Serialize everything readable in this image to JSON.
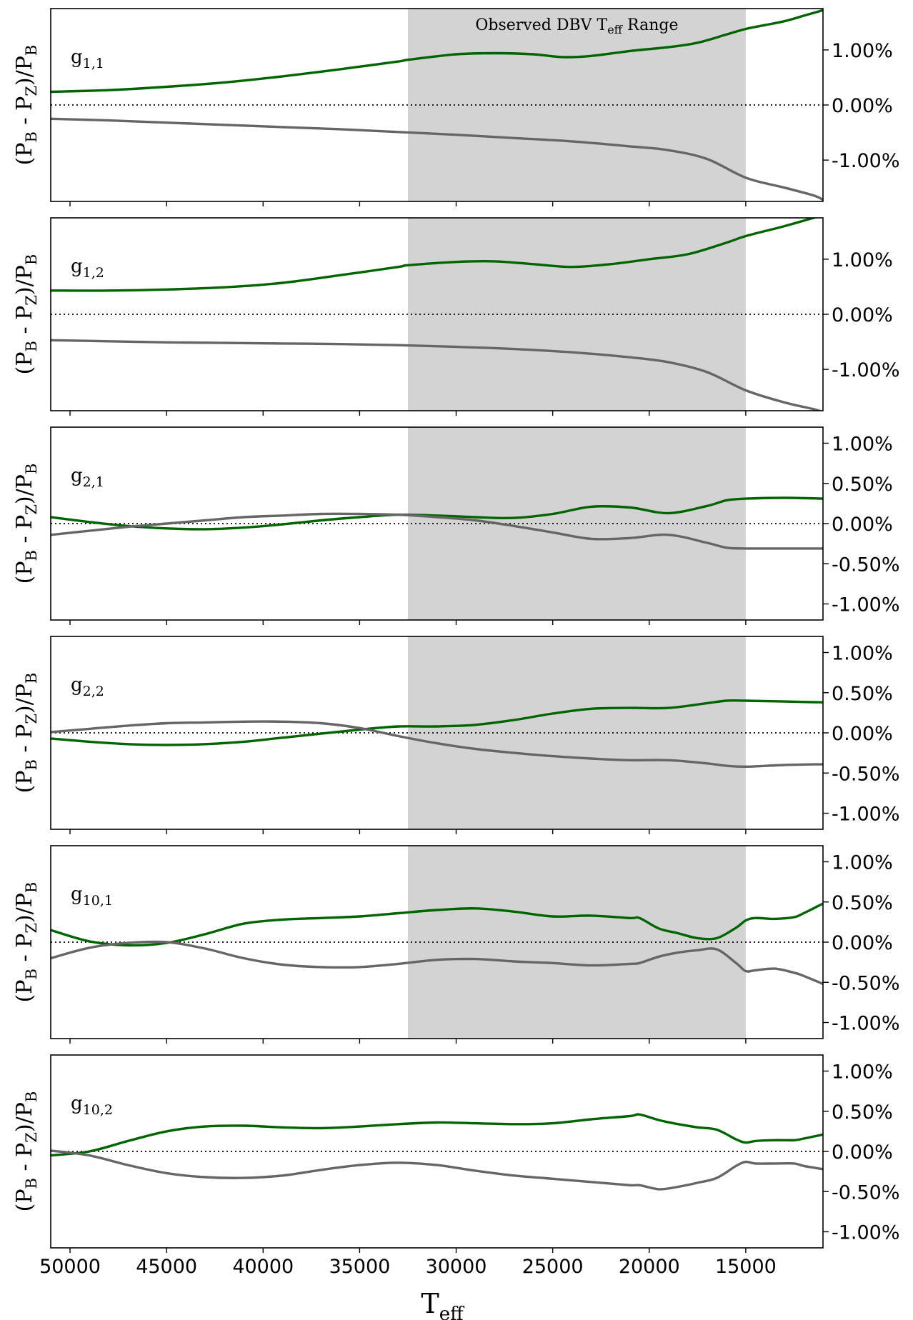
{
  "chart_data": {
    "type": "line",
    "x_axis": {
      "label": "T",
      "label_sub": "eff",
      "lim": [
        51000,
        11000
      ],
      "reversed": true,
      "ticks": [
        50000,
        45000,
        40000,
        35000,
        30000,
        25000,
        20000,
        15000
      ],
      "tick_labels": [
        "50000",
        "45000",
        "40000",
        "35000",
        "30000",
        "25000",
        "20000",
        "15000"
      ]
    },
    "y_axis_label": {
      "pre": "(P",
      "s1": "B",
      "mid": " - P",
      "s2": "Z",
      "post": ")/P",
      "s3": "B"
    },
    "y_axis_side": "right",
    "shaded_region": {
      "x_range": [
        32500,
        15000
      ],
      "label_pre": "Observed DBV T",
      "label_sub": "eff",
      "label_post": " Range",
      "color": "#d3d3d3"
    },
    "zero_line": {
      "y": 0,
      "style": "dotted"
    },
    "colors": {
      "green": "#006400",
      "gray": "#666666"
    },
    "panels": [
      {
        "mode_main": "g",
        "mode_sub": "1,1",
        "shaded": true,
        "show_range_label": true,
        "ylim": [
          -1.75,
          1.75
        ],
        "yticks": [
          1.0,
          0.0,
          -1.0
        ],
        "ytick_labels": [
          "1.00%",
          "0.00%",
          "-1.00%"
        ],
        "series": [
          {
            "color": "#006400",
            "x": [
              51000,
              48000,
              45000,
              42000,
              39000,
              36000,
              33000,
              32500,
              30000,
              28000,
              26000,
              24500,
              23000,
              21000,
              19000,
              17500,
              16000,
              15000,
              14000,
              13000,
              12000,
              11000
            ],
            "y": [
              0.24,
              0.27,
              0.33,
              0.41,
              0.52,
              0.65,
              0.79,
              0.82,
              0.92,
              0.94,
              0.92,
              0.87,
              0.89,
              0.98,
              1.05,
              1.13,
              1.28,
              1.38,
              1.45,
              1.52,
              1.62,
              1.72
            ]
          },
          {
            "color": "#666666",
            "x": [
              51000,
              48000,
              45000,
              42000,
              39000,
              36000,
              33000,
              30000,
              27000,
              24000,
              21000,
              19000,
              17000,
              15000,
              13000,
              11500,
              11000
            ],
            "y": [
              -0.25,
              -0.28,
              -0.32,
              -0.36,
              -0.4,
              -0.44,
              -0.49,
              -0.54,
              -0.6,
              -0.66,
              -0.75,
              -0.82,
              -0.98,
              -1.32,
              -1.5,
              -1.64,
              -1.72
            ]
          }
        ]
      },
      {
        "mode_main": "g",
        "mode_sub": "1,2",
        "shaded": true,
        "show_range_label": false,
        "ylim": [
          -1.75,
          1.75
        ],
        "yticks": [
          1.0,
          0.0,
          -1.0
        ],
        "ytick_labels": [
          "1.00%",
          "0.00%",
          "-1.00%"
        ],
        "series": [
          {
            "color": "#006400",
            "x": [
              51000,
              48000,
              45000,
              42000,
              39000,
              36000,
              33000,
              32500,
              30000,
              28000,
              26000,
              24000,
              22000,
              20000,
              18000,
              16000,
              15000,
              13000,
              11000
            ],
            "y": [
              0.43,
              0.43,
              0.45,
              0.49,
              0.57,
              0.71,
              0.86,
              0.89,
              0.95,
              0.96,
              0.91,
              0.86,
              0.91,
              1.0,
              1.09,
              1.3,
              1.42,
              1.6,
              1.8
            ]
          },
          {
            "color": "#666666",
            "x": [
              51000,
              48000,
              45000,
              42000,
              39000,
              36000,
              33000,
              30000,
              27000,
              24000,
              21000,
              19000,
              17000,
              15000,
              13000,
              11500,
              11000
            ],
            "y": [
              -0.47,
              -0.49,
              -0.51,
              -0.52,
              -0.53,
              -0.54,
              -0.56,
              -0.59,
              -0.63,
              -0.69,
              -0.78,
              -0.87,
              -1.05,
              -1.38,
              -1.6,
              -1.72,
              -1.78
            ]
          }
        ]
      },
      {
        "mode_main": "g",
        "mode_sub": "2,1",
        "shaded": true,
        "show_range_label": false,
        "ylim": [
          -1.2,
          1.2
        ],
        "yticks": [
          1.0,
          0.5,
          0.0,
          -0.5,
          -1.0
        ],
        "ytick_labels": [
          "1.00%",
          "0.50%",
          "0.00%",
          "-0.50%",
          "-1.00%"
        ],
        "series": [
          {
            "color": "#006400",
            "x": [
              51000,
              49000,
              47000,
              45000,
              43000,
              41000,
              39000,
              37000,
              35000,
              33000,
              31000,
              29000,
              27000,
              25000,
              23000,
              21000,
              19000,
              17000,
              16000,
              15000,
              13000,
              11000
            ],
            "y": [
              0.08,
              0.02,
              -0.03,
              -0.06,
              -0.07,
              -0.05,
              -0.01,
              0.04,
              0.08,
              0.11,
              0.1,
              0.08,
              0.07,
              0.12,
              0.21,
              0.2,
              0.13,
              0.22,
              0.29,
              0.31,
              0.32,
              0.31
            ]
          },
          {
            "color": "#666666",
            "x": [
              51000,
              49000,
              47000,
              45000,
              43000,
              41000,
              39000,
              37000,
              35000,
              33000,
              31000,
              29000,
              27000,
              25000,
              23000,
              21000,
              19000,
              17000,
              16000,
              15000,
              13000,
              11000
            ],
            "y": [
              -0.14,
              -0.09,
              -0.04,
              0.0,
              0.04,
              0.08,
              0.1,
              0.12,
              0.12,
              0.11,
              0.08,
              0.04,
              -0.03,
              -0.11,
              -0.19,
              -0.18,
              -0.14,
              -0.24,
              -0.3,
              -0.31,
              -0.31,
              -0.31
            ]
          }
        ]
      },
      {
        "mode_main": "g",
        "mode_sub": "2,2",
        "shaded": true,
        "show_range_label": false,
        "ylim": [
          -1.2,
          1.2
        ],
        "yticks": [
          1.0,
          0.5,
          0.0,
          -0.5,
          -1.0
        ],
        "ytick_labels": [
          "1.00%",
          "0.50%",
          "0.00%",
          "-0.50%",
          "-1.00%"
        ],
        "series": [
          {
            "color": "#006400",
            "x": [
              51000,
              49000,
              47000,
              45000,
              43000,
              41000,
              39000,
              37000,
              35000,
              33000,
              31000,
              29000,
              27000,
              25000,
              23000,
              21000,
              19000,
              17000,
              16000,
              15000,
              13000,
              11000
            ],
            "y": [
              -0.07,
              -0.11,
              -0.14,
              -0.15,
              -0.14,
              -0.11,
              -0.06,
              -0.01,
              0.04,
              0.08,
              0.08,
              0.1,
              0.16,
              0.24,
              0.3,
              0.31,
              0.31,
              0.37,
              0.4,
              0.4,
              0.39,
              0.38
            ]
          },
          {
            "color": "#666666",
            "x": [
              51000,
              49000,
              47000,
              45000,
              43000,
              41000,
              39000,
              37000,
              35000,
              33000,
              31000,
              29000,
              27000,
              25000,
              23000,
              21000,
              19000,
              17000,
              16000,
              15000,
              13000,
              11000
            ],
            "y": [
              0.01,
              0.05,
              0.09,
              0.12,
              0.13,
              0.14,
              0.14,
              0.12,
              0.06,
              -0.04,
              -0.13,
              -0.2,
              -0.25,
              -0.29,
              -0.32,
              -0.34,
              -0.34,
              -0.38,
              -0.41,
              -0.42,
              -0.4,
              -0.39
            ]
          }
        ]
      },
      {
        "mode_main": "g",
        "mode_sub": "10,1",
        "shaded": true,
        "show_range_label": false,
        "ylim": [
          -1.2,
          1.2
        ],
        "yticks": [
          1.0,
          0.5,
          0.0,
          -0.5,
          -1.0
        ],
        "ytick_labels": [
          "1.00%",
          "0.50%",
          "0.00%",
          "-0.50%",
          "-1.00%"
        ],
        "series": [
          {
            "color": "#006400",
            "x": [
              51000,
              49000,
              47000,
              45000,
              43000,
              41000,
              39000,
              37000,
              35000,
              33000,
              31000,
              29000,
              27000,
              25000,
              23000,
              21000,
              20500,
              19500,
              18500,
              17500,
              16500,
              15500,
              15000,
              14500,
              13500,
              12500,
              12000,
              11000
            ],
            "y": [
              0.15,
              0.01,
              -0.04,
              -0.01,
              0.1,
              0.23,
              0.28,
              0.3,
              0.32,
              0.36,
              0.4,
              0.42,
              0.38,
              0.32,
              0.33,
              0.3,
              0.3,
              0.17,
              0.11,
              0.05,
              0.05,
              0.18,
              0.27,
              0.3,
              0.29,
              0.31,
              0.36,
              0.48
            ]
          },
          {
            "color": "#666666",
            "x": [
              51000,
              49000,
              47000,
              45000,
              43000,
              41000,
              39000,
              37000,
              35000,
              33000,
              31000,
              29000,
              27000,
              25000,
              23000,
              21000,
              20500,
              19500,
              18500,
              17500,
              16500,
              15500,
              15000,
              14500,
              13500,
              12500,
              12000,
              11000
            ],
            "y": [
              -0.2,
              -0.07,
              -0.01,
              0.0,
              -0.08,
              -0.2,
              -0.28,
              -0.31,
              -0.31,
              -0.27,
              -0.22,
              -0.21,
              -0.24,
              -0.26,
              -0.29,
              -0.27,
              -0.26,
              -0.18,
              -0.13,
              -0.1,
              -0.09,
              -0.26,
              -0.36,
              -0.35,
              -0.33,
              -0.38,
              -0.42,
              -0.52
            ]
          }
        ]
      },
      {
        "mode_main": "g",
        "mode_sub": "10,2",
        "shaded": false,
        "show_range_label": false,
        "ylim": [
          -1.2,
          1.2
        ],
        "yticks": [
          1.0,
          0.5,
          0.0,
          -0.5,
          -1.0
        ],
        "ytick_labels": [
          "1.00%",
          "0.50%",
          "0.00%",
          "-0.50%",
          "-1.00%"
        ],
        "series": [
          {
            "color": "#006400",
            "x": [
              51000,
              49000,
              47000,
              45000,
              43000,
              41000,
              39000,
              37000,
              35000,
              33000,
              31000,
              29000,
              27000,
              25000,
              23000,
              21000,
              20500,
              19500,
              18500,
              17500,
              16500,
              15500,
              15000,
              14500,
              13500,
              12500,
              12000,
              11000
            ],
            "y": [
              -0.05,
              0.0,
              0.13,
              0.25,
              0.31,
              0.32,
              0.3,
              0.29,
              0.31,
              0.34,
              0.36,
              0.35,
              0.34,
              0.35,
              0.4,
              0.44,
              0.46,
              0.39,
              0.34,
              0.3,
              0.27,
              0.15,
              0.11,
              0.13,
              0.14,
              0.14,
              0.16,
              0.21
            ]
          },
          {
            "color": "#666666",
            "x": [
              51000,
              49000,
              47000,
              45000,
              43000,
              41000,
              39000,
              37000,
              35000,
              33000,
              31000,
              29000,
              27000,
              25000,
              23000,
              21000,
              20500,
              19500,
              18500,
              17500,
              16500,
              15500,
              15000,
              14500,
              13500,
              12500,
              12000,
              11000
            ],
            "y": [
              0.01,
              -0.05,
              -0.17,
              -0.27,
              -0.32,
              -0.33,
              -0.3,
              -0.23,
              -0.17,
              -0.14,
              -0.17,
              -0.24,
              -0.3,
              -0.34,
              -0.38,
              -0.42,
              -0.42,
              -0.47,
              -0.44,
              -0.39,
              -0.33,
              -0.18,
              -0.13,
              -0.15,
              -0.15,
              -0.15,
              -0.18,
              -0.22
            ]
          }
        ]
      }
    ]
  }
}
